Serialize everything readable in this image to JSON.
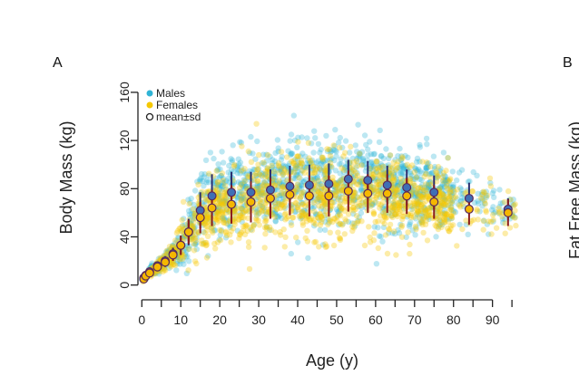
{
  "panel_a_label": "A",
  "panel_b_label": "B",
  "panel_b_ylabel": "Fat Free Mass (kg)",
  "colors": {
    "males": "#2fb4d6",
    "females": "#f5c800",
    "males_mean_fill": "#3f6fb5",
    "females_mean_fill": "#f5b700",
    "mean_border": "#5a2a5a",
    "males_sd": "#2a2e6e",
    "females_sd": "#8a1c1c",
    "axis": "#222222"
  },
  "chart_data": {
    "type": "scatter",
    "title": "",
    "xlabel": "Age (y)",
    "ylabel": "Body Mass (kg)",
    "xlim": [
      -1,
      98
    ],
    "ylim": [
      -4,
      178
    ],
    "xticks": [
      0,
      10,
      20,
      30,
      40,
      50,
      60,
      70,
      80,
      90
    ],
    "yticks": [
      0,
      40,
      80,
      120,
      160
    ],
    "legend": {
      "position": "top-left",
      "entries": [
        {
          "label": "Males",
          "marker": "filled-circle",
          "color": "#2fb4d6"
        },
        {
          "label": "Females",
          "marker": "filled-circle",
          "color": "#f5c800"
        },
        {
          "label": "mean±sd",
          "marker": "open-circle",
          "color": "#222222"
        }
      ]
    },
    "series": [
      {
        "name": "Males",
        "kind": "mean_sd",
        "points": [
          {
            "x": 0.5,
            "mean": 6,
            "sd": 1
          },
          {
            "x": 1,
            "mean": 8,
            "sd": 1.5
          },
          {
            "x": 2,
            "mean": 11,
            "sd": 2
          },
          {
            "x": 4,
            "mean": 16,
            "sd": 3
          },
          {
            "x": 6,
            "mean": 20,
            "sd": 4
          },
          {
            "x": 8,
            "mean": 26,
            "sd": 5
          },
          {
            "x": 10,
            "mean": 33,
            "sd": 8
          },
          {
            "x": 12,
            "mean": 44,
            "sd": 11
          },
          {
            "x": 15,
            "mean": 62,
            "sd": 15
          },
          {
            "x": 18,
            "mean": 74,
            "sd": 18
          },
          {
            "x": 23,
            "mean": 77,
            "sd": 17
          },
          {
            "x": 28,
            "mean": 77,
            "sd": 17
          },
          {
            "x": 33,
            "mean": 79,
            "sd": 17
          },
          {
            "x": 38,
            "mean": 82,
            "sd": 17
          },
          {
            "x": 43,
            "mean": 83,
            "sd": 17
          },
          {
            "x": 48,
            "mean": 84,
            "sd": 17
          },
          {
            "x": 53,
            "mean": 88,
            "sd": 16
          },
          {
            "x": 58,
            "mean": 87,
            "sd": 16
          },
          {
            "x": 63,
            "mean": 83,
            "sd": 16
          },
          {
            "x": 68,
            "mean": 81,
            "sd": 15
          },
          {
            "x": 75,
            "mean": 77,
            "sd": 14
          },
          {
            "x": 84,
            "mean": 72,
            "sd": 13
          },
          {
            "x": 94,
            "mean": 63,
            "sd": 9
          }
        ]
      },
      {
        "name": "Females",
        "kind": "mean_sd",
        "points": [
          {
            "x": 0.5,
            "mean": 5,
            "sd": 1
          },
          {
            "x": 1,
            "mean": 7.5,
            "sd": 1.5
          },
          {
            "x": 2,
            "mean": 10,
            "sd": 2
          },
          {
            "x": 4,
            "mean": 15,
            "sd": 3
          },
          {
            "x": 6,
            "mean": 19,
            "sd": 4
          },
          {
            "x": 8,
            "mean": 25,
            "sd": 5
          },
          {
            "x": 10,
            "mean": 33,
            "sd": 8
          },
          {
            "x": 12,
            "mean": 44,
            "sd": 10
          },
          {
            "x": 15,
            "mean": 56,
            "sd": 13
          },
          {
            "x": 18,
            "mean": 64,
            "sd": 15
          },
          {
            "x": 23,
            "mean": 67,
            "sd": 16
          },
          {
            "x": 28,
            "mean": 69,
            "sd": 17
          },
          {
            "x": 33,
            "mean": 72,
            "sd": 17
          },
          {
            "x": 38,
            "mean": 75,
            "sd": 17
          },
          {
            "x": 43,
            "mean": 74,
            "sd": 17
          },
          {
            "x": 48,
            "mean": 74,
            "sd": 17
          },
          {
            "x": 53,
            "mean": 78,
            "sd": 17
          },
          {
            "x": 58,
            "mean": 76,
            "sd": 16
          },
          {
            "x": 63,
            "mean": 76,
            "sd": 16
          },
          {
            "x": 68,
            "mean": 74,
            "sd": 15
          },
          {
            "x": 75,
            "mean": 69,
            "sd": 14
          },
          {
            "x": 84,
            "mean": 63,
            "sd": 13
          },
          {
            "x": 94,
            "mean": 60,
            "sd": 11
          }
        ]
      }
    ],
    "scatter_summary": {
      "description_units": "kg by age (y)",
      "males_count_drawn": 1400,
      "females_count_drawn": 1400
    }
  }
}
